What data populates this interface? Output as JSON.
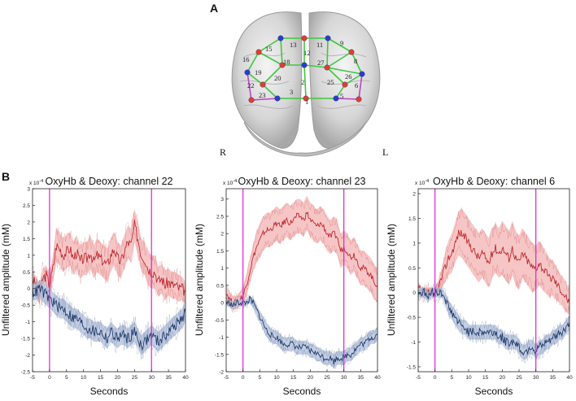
{
  "panel_a": {
    "label": "A",
    "side_right": "R",
    "side_left": "L",
    "channels": [
      "1",
      "2",
      "3",
      "5",
      "6",
      "8",
      "9",
      "11",
      "12",
      "13",
      "15",
      "16",
      "18",
      "19",
      "20",
      "22",
      "23",
      "25",
      "26",
      "27"
    ],
    "colors": {
      "source": "#e23b3b",
      "detector": "#2b3bd6",
      "green_link": "#3ec83e",
      "purple_link": "#b845c8"
    }
  },
  "panel_b": {
    "label": "B"
  },
  "chart_data": [
    {
      "type": "line",
      "title": "OxyHb & Deoxy: channel 22",
      "xlabel": "Seconds",
      "ylabel": "Unfiltered amplitude (mM)",
      "exponent_label": "x 10",
      "exponent_power": "-4",
      "xlim": [
        -5,
        40
      ],
      "ylim": [
        -2.5,
        3
      ],
      "xticks": [
        "-5",
        "0",
        "5",
        "10",
        "15",
        "20",
        "25",
        "30",
        "35",
        "40"
      ],
      "yticks": [
        "-2.5",
        "-2",
        "-1.5",
        "-1",
        "-0.5",
        "0",
        "0.5",
        "1",
        "1.5",
        "2",
        "2.5",
        "3"
      ],
      "markers_x": [
        0,
        30
      ],
      "series": [
        {
          "color": "#c0272d",
          "band": "#f5bcbc",
          "x": [
            -5,
            -4,
            -3,
            -2,
            -1,
            0,
            1,
            2,
            3,
            4,
            5,
            6,
            7,
            8,
            9,
            10,
            11,
            12,
            13,
            14,
            15,
            16,
            17,
            18,
            19,
            20,
            21,
            22,
            23,
            24,
            25,
            26,
            27,
            28,
            29,
            30,
            31,
            32,
            33,
            34,
            35,
            36,
            37,
            38,
            39,
            40
          ],
          "values": [
            0.3,
            0.1,
            -0.2,
            0.3,
            0.4,
            0.1,
            0.6,
            1.3,
            1.2,
            1.0,
            1.1,
            1.2,
            0.9,
            1.1,
            0.8,
            0.9,
            0.9,
            1.1,
            0.8,
            1.0,
            0.9,
            0.8,
            0.7,
            1.0,
            1.2,
            0.9,
            0.8,
            1.1,
            1.4,
            1.3,
            1.9,
            1.5,
            1.0,
            0.9,
            0.6,
            0.5,
            0.5,
            0.2,
            0.3,
            0.1,
            0.2,
            0.1,
            0.1,
            0.0,
            0.0,
            -0.1
          ],
          "spread": [
            0.25,
            0.25,
            0.3,
            0.3,
            0.3,
            0.3,
            0.4,
            0.5,
            0.5,
            0.5,
            0.5,
            0.5,
            0.5,
            0.5,
            0.5,
            0.5,
            0.5,
            0.5,
            0.5,
            0.5,
            0.5,
            0.5,
            0.5,
            0.5,
            0.5,
            0.5,
            0.5,
            0.5,
            0.5,
            0.5,
            0.5,
            0.5,
            0.5,
            0.5,
            0.5,
            0.5,
            0.5,
            0.45,
            0.45,
            0.45,
            0.4,
            0.4,
            0.4,
            0.4,
            0.35,
            0.3
          ]
        },
        {
          "color": "#1f3a6b",
          "band": "#b9c6de",
          "x": [
            -5,
            -4,
            -3,
            -2,
            -1,
            0,
            1,
            2,
            3,
            4,
            5,
            6,
            7,
            8,
            9,
            10,
            11,
            12,
            13,
            14,
            15,
            16,
            17,
            18,
            19,
            20,
            21,
            22,
            23,
            24,
            25,
            26,
            27,
            28,
            29,
            30,
            31,
            32,
            33,
            34,
            35,
            36,
            37,
            38,
            39,
            40
          ],
          "values": [
            -0.1,
            -0.1,
            0.0,
            -0.1,
            -0.2,
            -0.3,
            -0.4,
            -0.5,
            -0.6,
            -0.6,
            -0.7,
            -0.8,
            -0.9,
            -0.9,
            -1.0,
            -1.1,
            -1.2,
            -1.2,
            -1.3,
            -1.3,
            -1.3,
            -1.4,
            -1.5,
            -1.3,
            -1.4,
            -1.5,
            -1.4,
            -1.4,
            -1.5,
            -1.4,
            -1.3,
            -1.5,
            -1.7,
            -1.6,
            -1.5,
            -1.4,
            -1.5,
            -1.6,
            -1.5,
            -1.4,
            -1.3,
            -1.2,
            -1.1,
            -1.0,
            -0.9,
            -0.7
          ],
          "spread": [
            0.25,
            0.25,
            0.25,
            0.3,
            0.3,
            0.3,
            0.3,
            0.3,
            0.3,
            0.3,
            0.3,
            0.3,
            0.3,
            0.3,
            0.3,
            0.3,
            0.3,
            0.3,
            0.3,
            0.3,
            0.3,
            0.3,
            0.3,
            0.3,
            0.3,
            0.3,
            0.3,
            0.3,
            0.3,
            0.3,
            0.3,
            0.3,
            0.3,
            0.3,
            0.3,
            0.3,
            0.3,
            0.3,
            0.3,
            0.3,
            0.3,
            0.3,
            0.3,
            0.3,
            0.3,
            0.3
          ]
        }
      ]
    },
    {
      "type": "line",
      "title": "OxyHb & Deoxy: channel 23",
      "xlabel": "Seconds",
      "ylabel": "Unfiltered amplitude (mM)",
      "exponent_label": "x 10",
      "exponent_power": "-4",
      "xlim": [
        -5,
        40
      ],
      "ylim": [
        -2,
        3.3
      ],
      "xticks": [
        "-5",
        "0",
        "5",
        "10",
        "15",
        "20",
        "25",
        "30",
        "35",
        "40"
      ],
      "yticks": [
        "-2",
        "-1.5",
        "-1",
        "-0.5",
        "0",
        "0.5",
        "1",
        "1.5",
        "2",
        "2.5",
        "3"
      ],
      "markers_x": [
        0,
        30
      ],
      "series": [
        {
          "color": "#c0272d",
          "band": "#f5bcbc",
          "x": [
            -5,
            -4,
            -3,
            -2,
            -1,
            0,
            1,
            2,
            3,
            4,
            5,
            6,
            7,
            8,
            9,
            10,
            11,
            12,
            13,
            14,
            15,
            16,
            17,
            18,
            19,
            20,
            21,
            22,
            23,
            24,
            25,
            26,
            27,
            28,
            29,
            30,
            31,
            32,
            33,
            34,
            35,
            36,
            37,
            38,
            39,
            40
          ],
          "values": [
            0.3,
            0.1,
            0.0,
            0.0,
            0.1,
            0.2,
            0.5,
            0.9,
            1.3,
            1.6,
            1.8,
            2.0,
            2.1,
            2.1,
            2.2,
            2.3,
            2.2,
            2.3,
            2.4,
            2.3,
            2.4,
            2.5,
            2.5,
            2.4,
            2.6,
            2.4,
            2.3,
            2.2,
            2.3,
            2.2,
            2.0,
            1.9,
            2.0,
            1.9,
            1.5,
            1.6,
            1.5,
            1.3,
            1.4,
            1.2,
            1.0,
            1.0,
            0.9,
            0.8,
            0.6,
            0.5
          ],
          "spread": [
            0.2,
            0.2,
            0.2,
            0.2,
            0.2,
            0.25,
            0.3,
            0.35,
            0.4,
            0.45,
            0.5,
            0.5,
            0.5,
            0.5,
            0.5,
            0.5,
            0.5,
            0.5,
            0.5,
            0.5,
            0.5,
            0.5,
            0.5,
            0.5,
            0.5,
            0.5,
            0.5,
            0.5,
            0.5,
            0.5,
            0.5,
            0.5,
            0.5,
            0.5,
            0.5,
            0.5,
            0.5,
            0.5,
            0.5,
            0.5,
            0.5,
            0.5,
            0.5,
            0.5,
            0.5,
            0.5
          ]
        },
        {
          "color": "#1f3a6b",
          "band": "#b9c6de",
          "x": [
            -5,
            -4,
            -3,
            -2,
            -1,
            0,
            1,
            2,
            3,
            4,
            5,
            6,
            7,
            8,
            9,
            10,
            11,
            12,
            13,
            14,
            15,
            16,
            17,
            18,
            19,
            20,
            21,
            22,
            23,
            24,
            25,
            26,
            27,
            28,
            29,
            30,
            31,
            32,
            33,
            34,
            35,
            36,
            37,
            38,
            39,
            40
          ],
          "values": [
            0.0,
            0.0,
            -0.1,
            0.0,
            0.0,
            0.0,
            0.0,
            0.1,
            0.0,
            -0.2,
            -0.4,
            -0.6,
            -0.8,
            -0.9,
            -1.0,
            -1.0,
            -1.1,
            -1.2,
            -1.2,
            -1.2,
            -1.2,
            -1.3,
            -1.3,
            -1.3,
            -1.3,
            -1.4,
            -1.4,
            -1.5,
            -1.5,
            -1.6,
            -1.6,
            -1.6,
            -1.7,
            -1.6,
            -1.6,
            -1.6,
            -1.5,
            -1.5,
            -1.4,
            -1.3,
            -1.2,
            -1.2,
            -1.1,
            -1.0,
            -1.0,
            -0.9
          ],
          "spread": [
            0.1,
            0.1,
            0.1,
            0.1,
            0.1,
            0.1,
            0.1,
            0.1,
            0.15,
            0.15,
            0.15,
            0.2,
            0.2,
            0.2,
            0.2,
            0.2,
            0.2,
            0.2,
            0.2,
            0.2,
            0.2,
            0.2,
            0.2,
            0.2,
            0.2,
            0.2,
            0.2,
            0.2,
            0.2,
            0.2,
            0.2,
            0.2,
            0.2,
            0.2,
            0.2,
            0.2,
            0.2,
            0.2,
            0.2,
            0.2,
            0.2,
            0.2,
            0.2,
            0.2,
            0.2,
            0.2
          ]
        }
      ]
    },
    {
      "type": "line",
      "title": "OxyHb & Deoxy: channel 6",
      "xlabel": "Seconds",
      "ylabel": "Unfiltered amplitude (mM)",
      "exponent_label": "x 10",
      "exponent_power": "-4",
      "xlim": [
        -5,
        40
      ],
      "ylim": [
        -1.6,
        2.1
      ],
      "xticks": [
        "-5",
        "0",
        "5",
        "10",
        "15",
        "20",
        "25",
        "30",
        "35",
        "40"
      ],
      "yticks": [
        "-1.5",
        "-1",
        "-0.5",
        "0",
        "0.5",
        "1",
        "1.5",
        "2"
      ],
      "markers_x": [
        0,
        30
      ],
      "series": [
        {
          "color": "#c0272d",
          "band": "#f5bcbc",
          "x": [
            -5,
            -4,
            -3,
            -2,
            -1,
            0,
            1,
            2,
            3,
            4,
            5,
            6,
            7,
            8,
            9,
            10,
            11,
            12,
            13,
            14,
            15,
            16,
            17,
            18,
            19,
            20,
            21,
            22,
            23,
            24,
            25,
            26,
            27,
            28,
            29,
            30,
            31,
            32,
            33,
            34,
            35,
            36,
            37,
            38,
            39,
            40
          ],
          "values": [
            0.1,
            0.0,
            0.0,
            0.0,
            0.0,
            0.0,
            0.1,
            0.3,
            0.5,
            0.7,
            0.8,
            1.0,
            1.2,
            1.2,
            1.1,
            1.0,
            0.9,
            0.8,
            0.7,
            0.8,
            0.7,
            0.6,
            0.8,
            0.9,
            0.8,
            0.9,
            0.8,
            0.7,
            0.9,
            0.7,
            0.6,
            0.8,
            0.7,
            0.6,
            0.5,
            0.5,
            0.6,
            0.5,
            0.4,
            0.3,
            0.3,
            0.2,
            0.1,
            0.0,
            -0.1,
            -0.2
          ],
          "spread": [
            0.1,
            0.1,
            0.1,
            0.1,
            0.1,
            0.1,
            0.15,
            0.2,
            0.3,
            0.35,
            0.4,
            0.4,
            0.45,
            0.5,
            0.5,
            0.5,
            0.5,
            0.5,
            0.5,
            0.5,
            0.5,
            0.5,
            0.5,
            0.5,
            0.5,
            0.55,
            0.55,
            0.55,
            0.55,
            0.55,
            0.55,
            0.5,
            0.5,
            0.5,
            0.5,
            0.45,
            0.45,
            0.45,
            0.4,
            0.4,
            0.35,
            0.35,
            0.3,
            0.3,
            0.3,
            0.25
          ]
        },
        {
          "color": "#1f3a6b",
          "band": "#b9c6de",
          "x": [
            -5,
            -4,
            -3,
            -2,
            -1,
            0,
            1,
            2,
            3,
            4,
            5,
            6,
            7,
            8,
            9,
            10,
            11,
            12,
            13,
            14,
            15,
            16,
            17,
            18,
            19,
            20,
            21,
            22,
            23,
            24,
            25,
            26,
            27,
            28,
            29,
            30,
            31,
            32,
            33,
            34,
            35,
            36,
            37,
            38,
            39,
            40
          ],
          "values": [
            0.0,
            0.0,
            0.0,
            -0.1,
            0.0,
            0.0,
            0.0,
            0.0,
            -0.1,
            -0.3,
            -0.4,
            -0.5,
            -0.6,
            -0.7,
            -0.7,
            -0.8,
            -0.8,
            -0.8,
            -0.8,
            -0.8,
            -0.8,
            -0.8,
            -0.8,
            -0.8,
            -0.9,
            -0.9,
            -1.0,
            -1.0,
            -1.0,
            -1.0,
            -1.1,
            -1.2,
            -1.2,
            -1.1,
            -1.1,
            -1.2,
            -1.1,
            -1.1,
            -1.0,
            -1.0,
            -0.9,
            -0.9,
            -0.8,
            -0.8,
            -0.7,
            -0.6
          ],
          "spread": [
            0.1,
            0.1,
            0.1,
            0.1,
            0.1,
            0.1,
            0.1,
            0.1,
            0.1,
            0.15,
            0.15,
            0.15,
            0.15,
            0.15,
            0.15,
            0.15,
            0.15,
            0.15,
            0.15,
            0.15,
            0.15,
            0.15,
            0.15,
            0.15,
            0.15,
            0.15,
            0.15,
            0.15,
            0.15,
            0.15,
            0.15,
            0.15,
            0.15,
            0.15,
            0.15,
            0.15,
            0.15,
            0.15,
            0.15,
            0.15,
            0.15,
            0.15,
            0.15,
            0.15,
            0.15,
            0.15
          ]
        }
      ]
    }
  ]
}
